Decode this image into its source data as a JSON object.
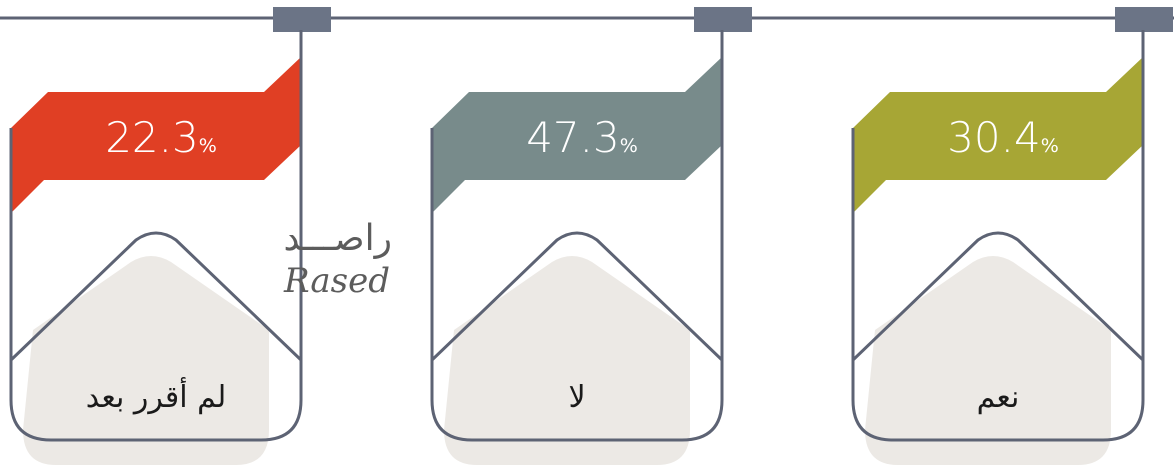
{
  "chart_data": {
    "type": "bar",
    "categories": [
      "نعم",
      "لا",
      "لم أقرر بعد"
    ],
    "values": [
      30.4,
      47.3,
      22.3
    ],
    "value_suffix": "%",
    "colors": [
      "#a7a635",
      "#788b8b",
      "#e03f24"
    ],
    "title": "",
    "xlabel": "",
    "ylabel": ""
  },
  "branding": {
    "logo_arabic": "راصـــد",
    "logo_latin": "Rased"
  },
  "style": {
    "line_color": "#5d6374",
    "connector_color": "#6b7486",
    "card_fill": "#ece9e5"
  }
}
